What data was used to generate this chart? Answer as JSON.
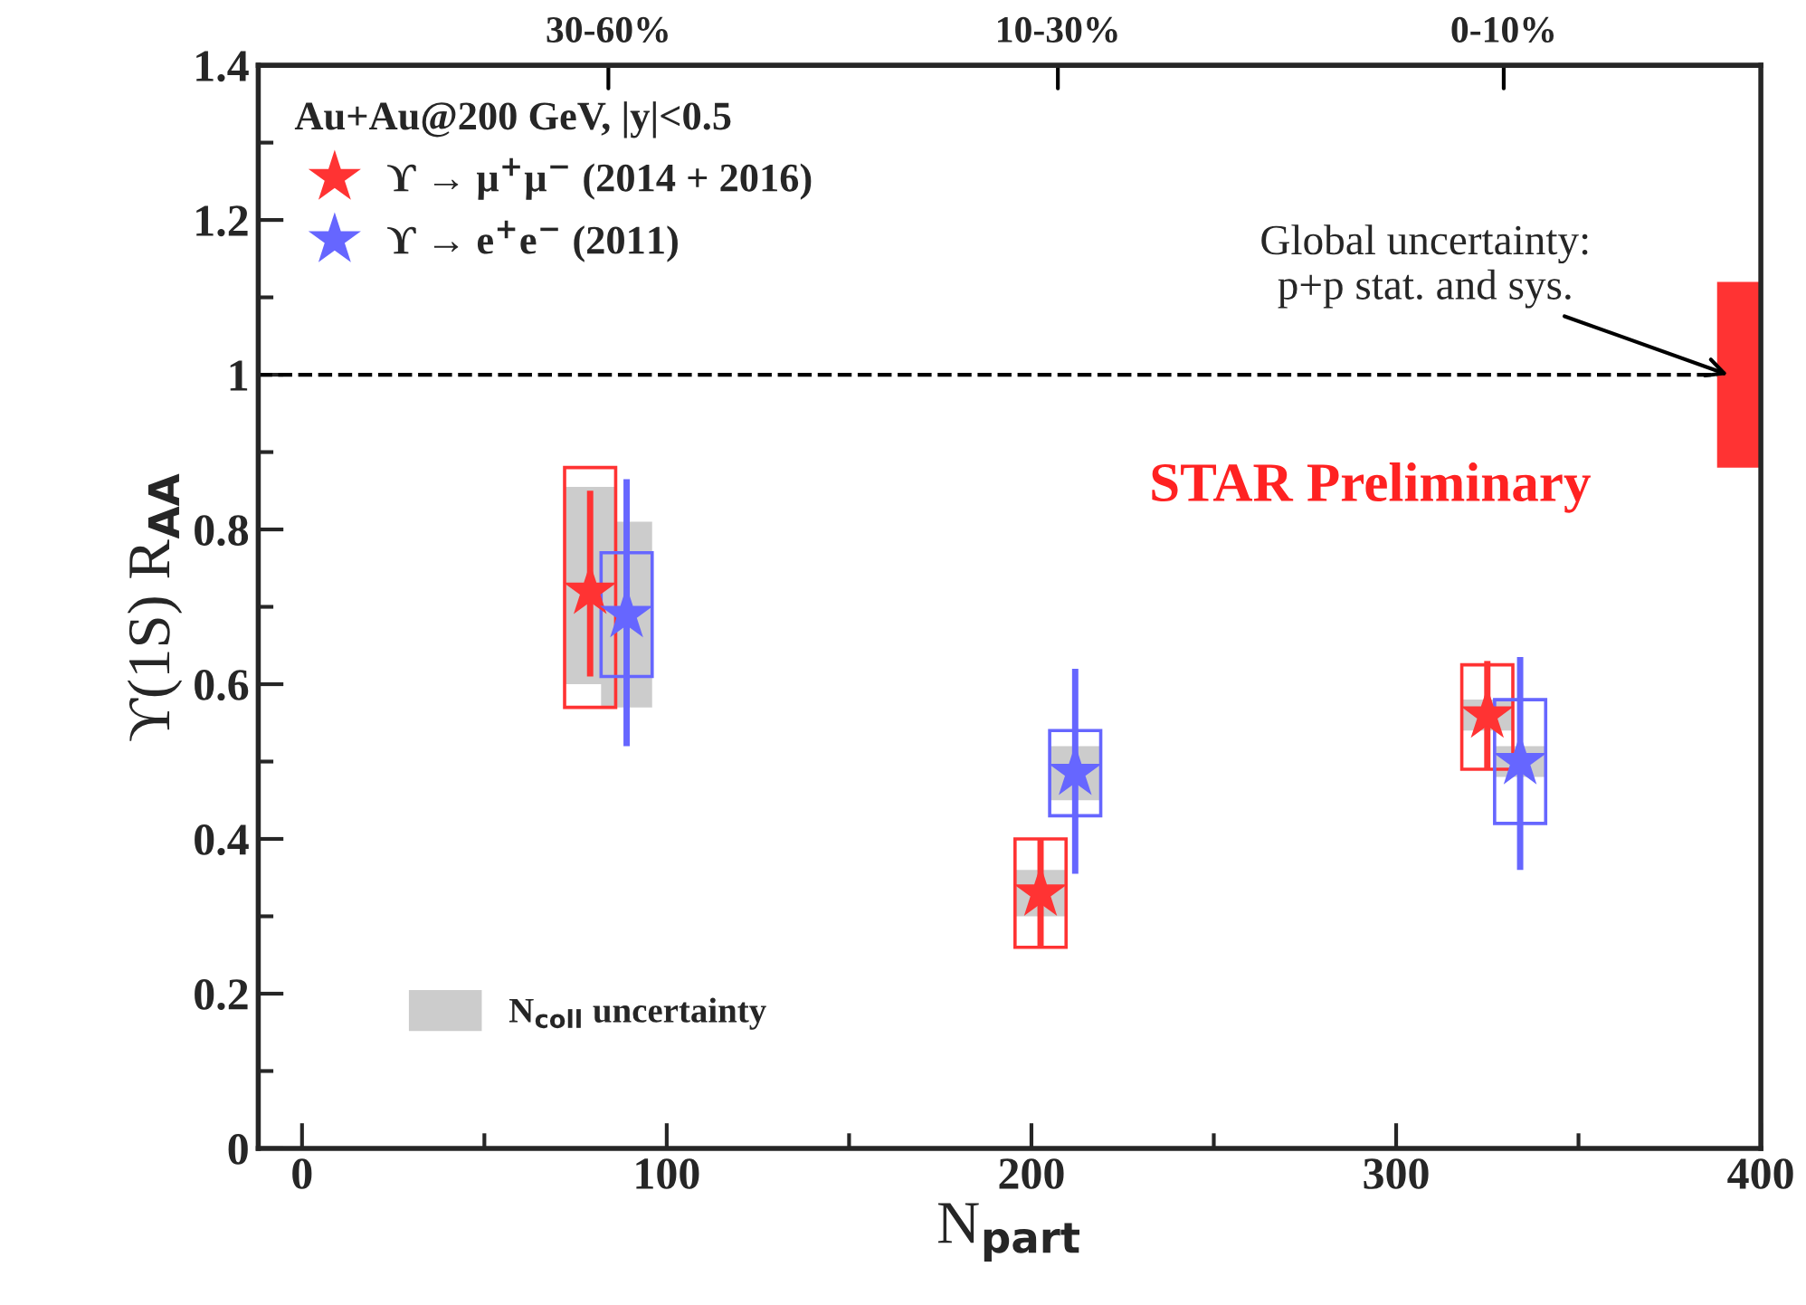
{
  "chart_data": {
    "type": "scatter",
    "xlabel": "N$_{part}$",
    "ylabel": "ϒ(1S) R$_{AA}$",
    "legend_title": "Au+Au@200 GeV, |y|<0.5",
    "xlim": [
      -12,
      400
    ],
    "xticks": [
      0,
      100,
      200,
      300,
      400
    ],
    "ylim": [
      0,
      1.4
    ],
    "yticks": [
      0,
      0.2,
      0.4,
      0.6,
      0.8,
      1,
      1.2,
      1.4
    ],
    "legend": "top left",
    "marker": "star",
    "ref_lines": [
      {
        "axis": "y",
        "value": 1,
        "color": "#000000",
        "line_style": "dashed"
      }
    ],
    "annotations": [
      "30-60%",
      "10-30%",
      "0-10%",
      {
        "text": "Global uncertainty:\np+p stat. and sys.",
        "x": 391,
        "y": 1
      },
      "STAR Preliminary"
    ],
    "series": [
      {
        "type": "bar",
        "name": "N$_{coll}$ uncertainty",
        "color": "#cccccc",
        "x": [
          79,
          89,
          202.5,
          212,
          325,
          334
        ],
        "base": [
          0.6,
          0.57,
          0.3,
          0.45,
          0.54,
          0.48
        ],
        "values": [
          0.255,
          0.24,
          0.06,
          0.07,
          0.04,
          0.04
        ]
      },
      {
        "type": "bar",
        "line_style": "solid",
        "color": "#ff3333",
        "x": [
          79,
          202.5,
          325
        ],
        "base": [
          0.57,
          0.26,
          0.49
        ],
        "values": [
          0.31,
          0.14,
          0.135
        ]
      },
      {
        "type": "bar",
        "line_style": "solid",
        "color": "#6666ff",
        "x": [
          89,
          212,
          334
        ],
        "base": [
          0.61,
          0.43,
          0.42
        ],
        "values": [
          0.16,
          0.11,
          0.16
        ]
      },
      {
        "type": "bar",
        "color": "#ff3333",
        "x": [
          395
        ],
        "base": [
          0.88
        ],
        "values": [
          0.24
        ]
      },
      {
        "name": "ϒ → μ$^{+}$μ$^{−}$ (2014 + 2016)",
        "color": "#ff3333",
        "x": [
          79,
          202.5,
          325
        ],
        "values": [
          0.72,
          0.33,
          0.56
        ],
        "errors": [
          [
            0.61,
            0.85
          ],
          [
            0.26,
            0.4
          ],
          [
            0.49,
            0.63
          ]
        ]
      },
      {
        "name": "ϒ → e$^{+}$e$^{−}$ (2011)",
        "color": "#6666ff",
        "x": [
          89,
          212,
          334
        ],
        "values": [
          0.69,
          0.486,
          0.5
        ],
        "errors": [
          [
            0.52,
            0.865
          ],
          [
            0.355,
            0.62
          ],
          [
            0.36,
            0.635
          ]
        ]
      }
    ]
  }
}
